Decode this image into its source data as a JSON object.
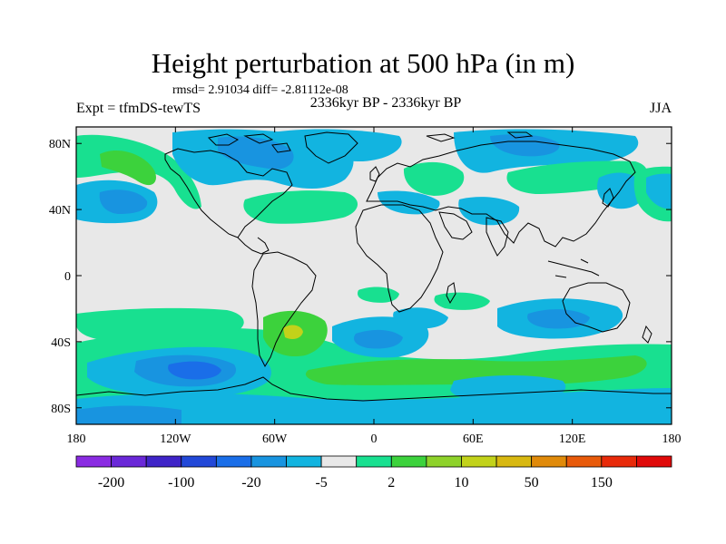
{
  "title": "Height perturbation at 500 hPa (in m)",
  "stats_text": "rmsd= 2.91034 diff= -2.81112e-08",
  "left_label": "Expt = tfmDS-tewTS",
  "subtitle": "2336kyr BP - 2336kyr BP",
  "season": "JJA",
  "map": {
    "lon_range": [
      -180,
      180
    ],
    "lat_range": [
      -90,
      90
    ],
    "y_ticks": [
      {
        "lat": 80,
        "label": "80N"
      },
      {
        "lat": 40,
        "label": "40N"
      },
      {
        "lat": 0,
        "label": "0"
      },
      {
        "lat": -40,
        "label": "40S"
      },
      {
        "lat": -80,
        "label": "80S"
      }
    ],
    "x_ticks": [
      {
        "lon": -180,
        "label": "180"
      },
      {
        "lon": -120,
        "label": "120W"
      },
      {
        "lon": -60,
        "label": "60W"
      },
      {
        "lon": 0,
        "label": "0"
      },
      {
        "lon": 60,
        "label": "60E"
      },
      {
        "lon": 120,
        "label": "120E"
      },
      {
        "lon": 180,
        "label": "180"
      }
    ],
    "background_color": "#e8e8e8",
    "coastline_color": "#000000"
  },
  "colorbar": {
    "colors": [
      "#8a2be2",
      "#6a28d8",
      "#3f24c8",
      "#2248d8",
      "#1a6ee8",
      "#1894e0",
      "#12b4e0",
      "#e8e8e8",
      "#18e090",
      "#3cd23c",
      "#8ed22a",
      "#c2d21a",
      "#d8b810",
      "#e08a0a",
      "#e85a0a",
      "#e82a0a",
      "#e00a0a"
    ],
    "tick_labels": [
      {
        "after_box": 1,
        "label": "-200"
      },
      {
        "after_box": 3,
        "label": "-100"
      },
      {
        "after_box": 5,
        "label": "-20"
      },
      {
        "after_box": 7,
        "label": "-5"
      },
      {
        "after_box": 9,
        "label": "2"
      },
      {
        "after_box": 11,
        "label": "10"
      },
      {
        "after_box": 13,
        "label": "50"
      },
      {
        "after_box": 15,
        "label": "150"
      }
    ]
  },
  "anomaly_regions": [
    {
      "name": "N Pacific positive",
      "level": 9,
      "lon": -157,
      "lat": 60
    },
    {
      "name": "N Pacific negative",
      "level": 6,
      "lon": -140,
      "lat": 35
    },
    {
      "name": "Canada negative",
      "level": 6,
      "lon": -75,
      "lat": 63
    },
    {
      "name": "Gulf of Mexico positive",
      "level": 8,
      "lon": -65,
      "lat": 35
    },
    {
      "name": "N Atlantic negative",
      "level": 7,
      "lon": -30,
      "lat": 62
    },
    {
      "name": "Europe positive",
      "level": 8,
      "lon": 20,
      "lat": 53
    },
    {
      "name": "Central Asia negative",
      "level": 6,
      "lon": 60,
      "lat": 68
    },
    {
      "name": "East Asia negative",
      "level": 6,
      "lon": 150,
      "lat": 50
    },
    {
      "name": "SE Pacific negative",
      "level": 5,
      "lon": -105,
      "lat": -60
    },
    {
      "name": "S Atlantic positive",
      "level": 10,
      "lon": -40,
      "lat": -43
    },
    {
      "name": "S Indian negative",
      "level": 6,
      "lon": 100,
      "lat": -38
    },
    {
      "name": "Southern Ocean positive",
      "level": 9,
      "lon": 40,
      "lat": -67
    }
  ]
}
